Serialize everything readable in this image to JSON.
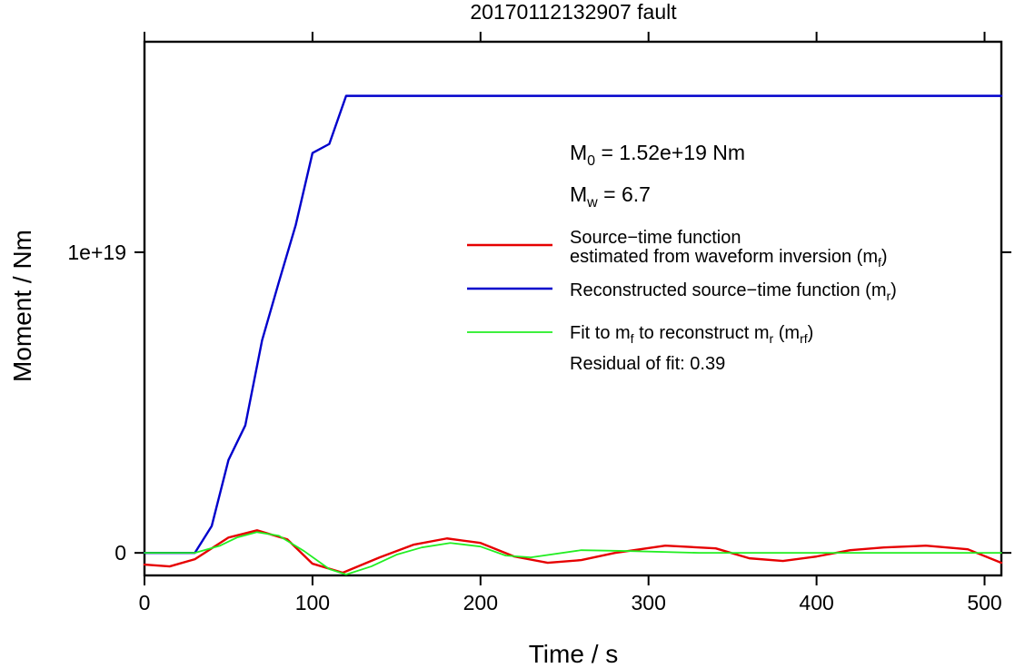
{
  "chart_data": {
    "type": "line",
    "title": "20170112132907 fault",
    "xlabel": "Time / s",
    "ylabel": "Moment / Nm",
    "xlim": [
      0,
      510
    ],
    "ylim": [
      -7.5e+17,
      1.7e+19
    ],
    "x_ticks": [
      0,
      100,
      200,
      300,
      400,
      500
    ],
    "x_tick_labels": [
      "0",
      "100",
      "200",
      "300",
      "400",
      "500"
    ],
    "y_ticks": [
      0,
      1e+19
    ],
    "y_tick_labels": [
      "0",
      "1e+19"
    ],
    "grid": false,
    "legend_position": "top-right",
    "annotations": {
      "m0_symbol": "M",
      "m0_sub": "0",
      "m0_value": " = 1.52e+19 Nm",
      "mw_symbol": "M",
      "mw_sub": "w",
      "mw_value": " = 6.7",
      "residual": "Residual of fit: 0.39"
    },
    "legend": {
      "red_line1": "Source−time function",
      "red_line2_prefix": "estimated from waveform inversion (m",
      "red_line2_sub": "f",
      "red_line2_suffix": ")",
      "blue_prefix": "Reconstructed source−time function (m",
      "blue_sub": "r",
      "blue_suffix": ")",
      "green_a": "Fit to m",
      "green_sub1": "f",
      "green_b": " to reconstruct m",
      "green_sub2": "r",
      "green_c": " (m",
      "green_sub3": "rf",
      "green_d": ")"
    },
    "series": [
      {
        "key": "reconstructed",
        "color": "#0000cc",
        "width": 2.4,
        "x": [
          0,
          30,
          40,
          50,
          60,
          70,
          80,
          90,
          100,
          110,
          120,
          510
        ],
        "y": [
          0,
          0,
          8.9e+17,
          3.09e+18,
          4.24e+18,
          7.07e+18,
          9.01e+18,
          1.09e+19,
          1.33e+19,
          1.36e+19,
          1.52e+19,
          1.52e+19
        ]
      },
      {
        "key": "estimated",
        "color": "#e60000",
        "width": 2.4,
        "x": [
          0,
          15,
          30,
          50,
          67,
          85,
          100,
          118,
          140,
          160,
          180,
          200,
          220,
          240,
          260,
          280,
          310,
          340,
          360,
          380,
          400,
          420,
          440,
          465,
          490,
          510
        ],
        "y": [
          -3.9e+17,
          -4.5e+17,
          -2.1e+17,
          5.1e+17,
          7.5e+17,
          4.5e+17,
          -3.6e+17,
          -6.6e+17,
          -1.5e+17,
          2.7e+17,
          4.8e+17,
          3.3e+17,
          -1.2e+17,
          -3.3e+17,
          -2.4e+17,
          0,
          2.4e+17,
          1.5e+17,
          -1.8e+17,
          -2.7e+17,
          -1.2e+17,
          9e+16,
          1.8e+17,
          2.4e+17,
          1.2e+17,
          -3.3e+17
        ]
      },
      {
        "key": "fit",
        "color": "#22ee22",
        "width": 1.8,
        "x": [
          0,
          30,
          45,
          55,
          67,
          80,
          95,
          110,
          120,
          135,
          150,
          165,
          182,
          200,
          215,
          230,
          260,
          290,
          330,
          400,
          510
        ],
        "y": [
          0,
          0,
          2.4e+17,
          5.1e+17,
          6.9e+17,
          5.7e+17,
          6e+16,
          -5.4e+17,
          -7.2e+17,
          -4.5e+17,
          -6e+16,
          1.8e+17,
          3.3e+17,
          2.1e+17,
          -9e+16,
          -1.5e+17,
          9e+16,
          6e+16,
          0,
          0,
          0
        ]
      }
    ]
  }
}
